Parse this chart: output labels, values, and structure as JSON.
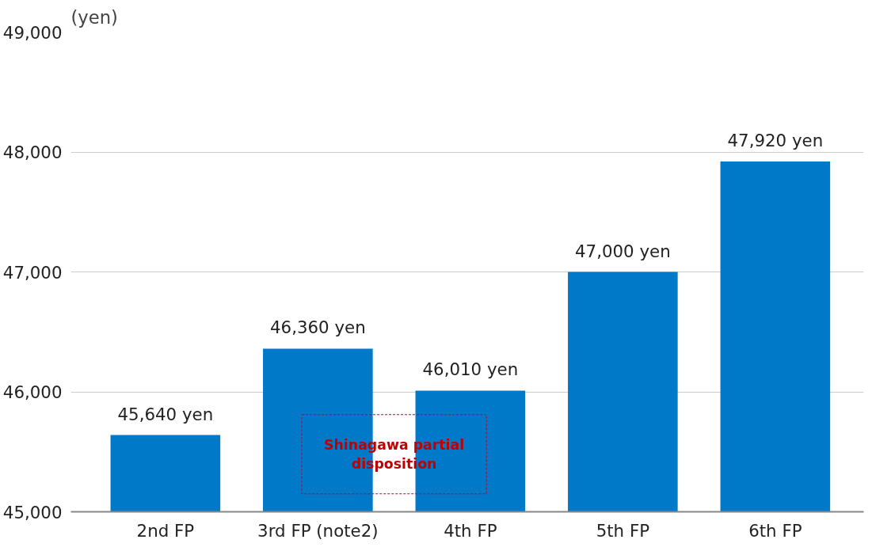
{
  "chart_data": {
    "type": "bar",
    "ylabel": "(yen)",
    "categories": [
      "2nd FP",
      "3rd FP (note2)",
      "4th FP",
      "5th FP",
      "6th FP"
    ],
    "values": [
      45640,
      46360,
      46010,
      47000,
      47920
    ],
    "color": "#0079c8",
    "value_labels": [
      "45,640 yen",
      "46,360 yen",
      "46,010 yen",
      "47,000 yen",
      "47,920 yen"
    ],
    "ylim": [
      45000,
      49000
    ],
    "yticks": [
      {
        "value": 45000,
        "label": "45,000"
      },
      {
        "value": 46000,
        "label": "46,000"
      },
      {
        "value": 47000,
        "label": "47,000"
      },
      {
        "value": 48000,
        "label": "48,000"
      },
      {
        "value": 49000,
        "label": "49,000"
      }
    ],
    "grid": "y",
    "annotations": [
      "Shinagawa partial disposition"
    ]
  }
}
